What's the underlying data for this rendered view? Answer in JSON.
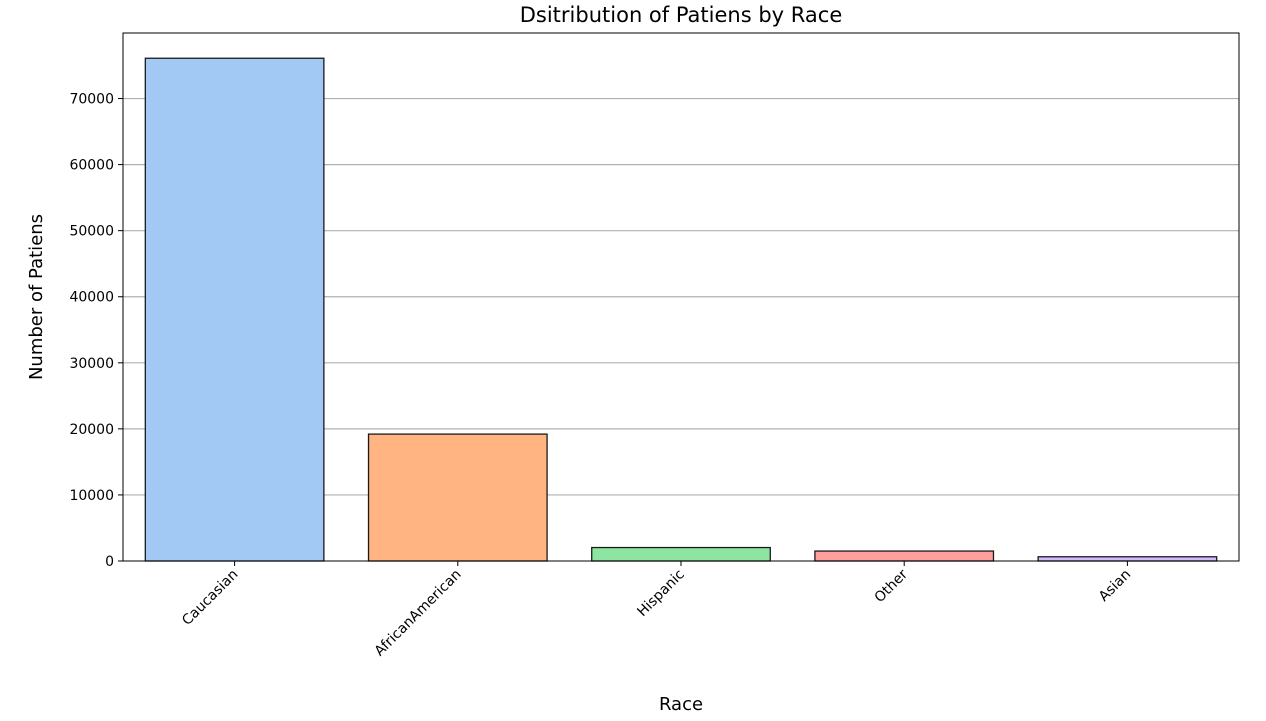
{
  "chart_data": {
    "type": "bar",
    "title": "Dsitribution of Patiens by Race",
    "xlabel": "Race",
    "ylabel": "Number of Patiens",
    "categories": [
      "Caucasian",
      "AfricanAmerican",
      "Hispanic",
      "Other",
      "Asian"
    ],
    "values": [
      76099,
      19210,
      2037,
      1506,
      641
    ],
    "colors": [
      "#a1c9f4",
      "#ffb482",
      "#8de5a1",
      "#ff9f9b",
      "#d0bbff"
    ],
    "ylim": [
      0,
      80000
    ],
    "yticks": [
      0,
      10000,
      20000,
      30000,
      40000,
      50000,
      60000,
      70000
    ],
    "ytick_labels": [
      "0",
      "10000",
      "20000",
      "30000",
      "40000",
      "50000",
      "60000",
      "70000"
    ],
    "grid": "y",
    "legend": "none"
  }
}
